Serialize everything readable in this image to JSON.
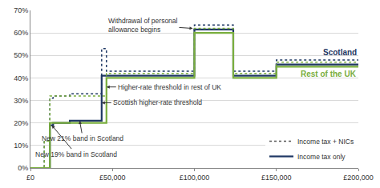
{
  "chart_data": {
    "type": "step",
    "xlim": [
      0,
      200000
    ],
    "xticks": [
      {
        "value": 0,
        "label": "£0"
      },
      {
        "value": 50000,
        "label": "£50,000"
      },
      {
        "value": 100000,
        "label": "£100,000"
      },
      {
        "value": 150000,
        "label": "£150,000"
      },
      {
        "value": 200000,
        "label": "£200,000"
      }
    ],
    "ylim": [
      0,
      70
    ],
    "yticks": [
      {
        "value": 0,
        "label": "0%"
      },
      {
        "value": 10,
        "label": "10%"
      },
      {
        "value": 20,
        "label": "20%"
      },
      {
        "value": 30,
        "label": "30%"
      },
      {
        "value": 40,
        "label": "40%"
      },
      {
        "value": 50,
        "label": "50%"
      },
      {
        "value": 60,
        "label": "60%"
      },
      {
        "value": 70,
        "label": "70%"
      }
    ],
    "grid": true,
    "legend": "lower right",
    "legend_entries": [
      {
        "name": "Income tax + NICs",
        "line_style": "dotted",
        "color": "#555555"
      },
      {
        "name": "Income tax only",
        "line_style": "solid",
        "color": "#1f3864"
      }
    ],
    "series": [
      {
        "name": "Scotland",
        "color": "#1f3864",
        "lines": [
          {
            "line_style": "dotted",
            "x": [
              0,
              8424,
              11850,
              13850,
              24000,
              43430,
              46350,
              100000,
              123700,
              150000,
              200000
            ],
            "values": [
              0,
              12,
              31,
              32,
              33,
              53,
              43,
              63.5,
              43,
              48,
              48
            ]
          },
          {
            "line_style": "solid",
            "x": [
              0,
              11850,
              13850,
              24000,
              43430,
              100000,
              123700,
              150000,
              200000
            ],
            "values": [
              0,
              19,
              20,
              21,
              41,
              61.5,
              41,
              46,
              46
            ]
          }
        ]
      },
      {
        "name": "Rest of the UK",
        "color": "#7aae3e",
        "lines": [
          {
            "line_style": "dotted",
            "x": [
              0,
              8424,
              11850,
              46350,
              100000,
              123700,
              150000,
              200000
            ],
            "values": [
              0,
              12,
              32,
              42,
              62,
              42,
              47,
              47
            ]
          },
          {
            "line_style": "solid",
            "x": [
              0,
              11850,
              46350,
              100000,
              123700,
              150000,
              200000
            ],
            "values": [
              0,
              20,
              40,
              60,
              40,
              45,
              45
            ]
          }
        ]
      }
    ],
    "annotations": [
      {
        "lines": [
          "Withdrawal of personal",
          "allowance begins"
        ],
        "x": 99000,
        "y": 62
      },
      {
        "lines": [
          "Higher-rate threshold in rest of UK"
        ],
        "x": 46350,
        "y": 36
      },
      {
        "lines": [
          "Scottish higher-rate threshold"
        ],
        "x": 43430,
        "y": 29
      },
      {
        "lines": [
          "New 21% band in Scotland"
        ],
        "x": 30000,
        "y": 21
      },
      {
        "lines": [
          "New 19% band in Scotland"
        ],
        "x": 13000,
        "y": 19
      }
    ]
  }
}
